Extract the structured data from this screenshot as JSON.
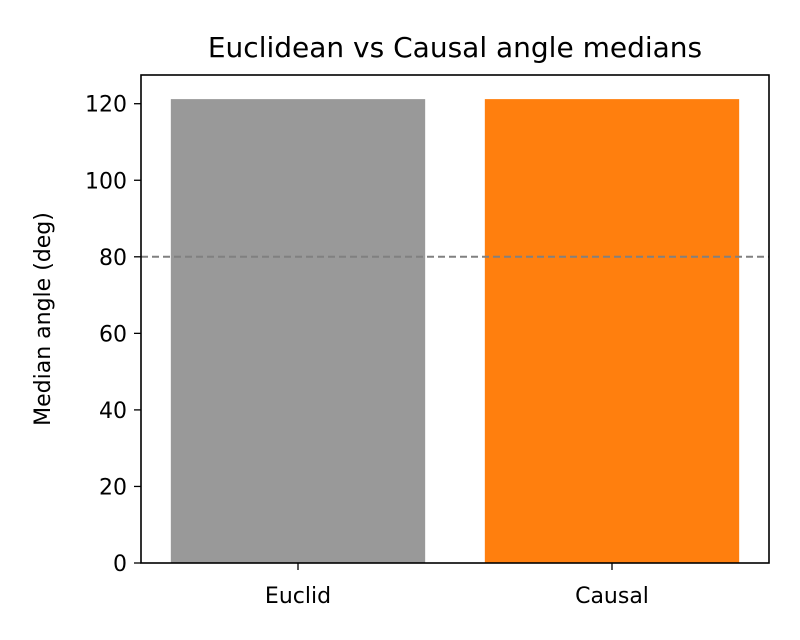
{
  "chart_data": {
    "type": "bar",
    "title": "Euclidean vs Causal angle medians",
    "xlabel": "",
    "ylabel": "Median angle (deg)",
    "categories": [
      "Euclid",
      "Causal"
    ],
    "values": [
      121.2,
      121.2
    ],
    "colors": [
      "#999999",
      "#ff7f0e"
    ],
    "ylim": [
      0,
      127.5
    ],
    "yticks": [
      0,
      20,
      40,
      60,
      80,
      100,
      120
    ],
    "reference_line": {
      "y": 80,
      "style": "dashed",
      "color": "#808080"
    },
    "grid": false,
    "legend": "none"
  }
}
